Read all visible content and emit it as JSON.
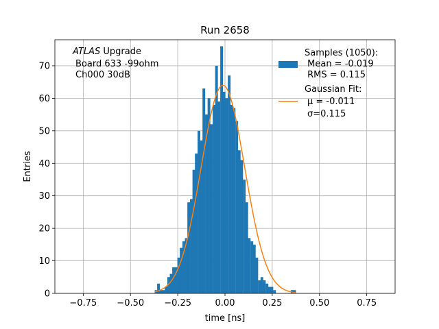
{
  "chart_data": {
    "type": "bar",
    "title": "Run 2658",
    "xlabel": "time [ns]",
    "ylabel": "Entries",
    "xlim": [
      -0.9,
      0.9
    ],
    "ylim": [
      0,
      78
    ],
    "grid": true,
    "xticks": [
      -0.75,
      -0.5,
      -0.25,
      0.0,
      0.25,
      0.5,
      0.75
    ],
    "xtick_labels": [
      "−0.75",
      "−0.50",
      "−0.25",
      "0.00",
      "0.25",
      "0.50",
      "0.75"
    ],
    "yticks": [
      0,
      10,
      20,
      30,
      40,
      50,
      60,
      70
    ],
    "ytick_labels": [
      "0",
      "10",
      "20",
      "30",
      "40",
      "50",
      "60",
      "70"
    ],
    "annotation": {
      "line1_italic": "ATLAS",
      "line1_rest": " Upgrade",
      "line2": "Board 633 -99ohm",
      "line3": "Ch000 30dB"
    },
    "legend": {
      "position": "top-right",
      "histogram_label_lines": [
        "Samples (1050):",
        " Mean = -0.019",
        " RMS = 0.115"
      ],
      "fit_label_lines": [
        "Gaussian Fit:",
        "μ = -0.011",
        "σ=0.115"
      ]
    },
    "histogram": {
      "name": "Samples (1050)",
      "color": "#1f77b4",
      "bin_width": 0.0133,
      "bin_starts": [
        -0.372,
        -0.359,
        -0.345,
        -0.332,
        -0.319,
        -0.305,
        -0.292,
        -0.279,
        -0.265,
        -0.252,
        -0.239,
        -0.225,
        -0.212,
        -0.199,
        -0.185,
        -0.172,
        -0.159,
        -0.145,
        -0.132,
        -0.119,
        -0.105,
        -0.092,
        -0.079,
        -0.065,
        -0.052,
        -0.039,
        -0.025,
        -0.012,
        0.001,
        0.015,
        0.028,
        0.041,
        0.055,
        0.068,
        0.081,
        0.095,
        0.108,
        0.121,
        0.135,
        0.148,
        0.161,
        0.175,
        0.188,
        0.201,
        0.215,
        0.228,
        0.241,
        0.255,
        0.268,
        0.281,
        0.295,
        0.308,
        0.321,
        0.335,
        0.348,
        0.361
      ],
      "counts": [
        1,
        3,
        1,
        1,
        2,
        5,
        6,
        8,
        8,
        11,
        14,
        16,
        17,
        28,
        29,
        38,
        43,
        50,
        47,
        63,
        55,
        60,
        52,
        58,
        70,
        59,
        76,
        62,
        60,
        67,
        58,
        57,
        53,
        44,
        41,
        35,
        28,
        17,
        16,
        15,
        11,
        4,
        5,
        4,
        3,
        2,
        2,
        1,
        0,
        0,
        0,
        0,
        0,
        0,
        1,
        1
      ]
    },
    "series": [
      {
        "name": "Gaussian Fit",
        "type": "line",
        "color": "#ff7f0e",
        "mu": -0.011,
        "sigma": 0.115,
        "amplitude": 64,
        "x_range": [
          -0.372,
          0.373
        ]
      }
    ]
  }
}
